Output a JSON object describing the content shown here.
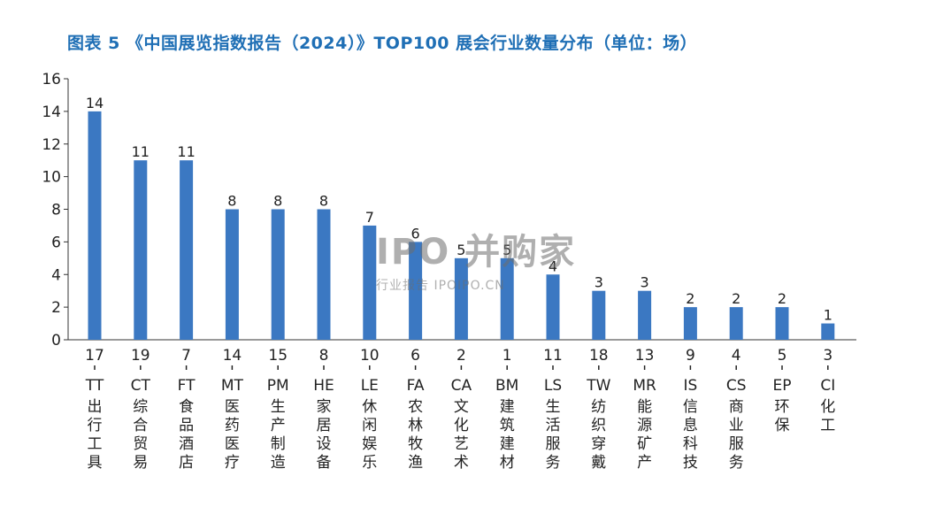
{
  "title": "图表 5 《中国展览指数报告（2024）》TOP100 展会行业数量分布（单位：场）",
  "watermark": {
    "main": "IPO 并购家",
    "sub": "行业报告 IPOIPO.CN"
  },
  "colors": {
    "bar": "#3b78c2",
    "title": "#1f6fb5",
    "axis": "#333333",
    "text": "#222222"
  },
  "chart_data": {
    "type": "bar",
    "title": "图表 5 《中国展览指数报告（2024）》TOP100 展会行业数量分布（单位：场）",
    "xlabel": "",
    "ylabel": "",
    "ylim": [
      0,
      16
    ],
    "yticks": [
      0,
      2,
      4,
      6,
      8,
      10,
      12,
      14,
      16
    ],
    "grid": false,
    "categories": [
      {
        "rank": "17",
        "code": "TT",
        "name": "出行工具"
      },
      {
        "rank": "19",
        "code": "CT",
        "name": "综合贸易"
      },
      {
        "rank": "7",
        "code": "FT",
        "name": "食品酒店"
      },
      {
        "rank": "14",
        "code": "MT",
        "name": "医药医疗"
      },
      {
        "rank": "15",
        "code": "PM",
        "name": "生产制造"
      },
      {
        "rank": "8",
        "code": "HE",
        "name": "家居设备"
      },
      {
        "rank": "10",
        "code": "LE",
        "name": "休闲娱乐"
      },
      {
        "rank": "6",
        "code": "FA",
        "name": "农林牧渔"
      },
      {
        "rank": "2",
        "code": "CA",
        "name": "文化艺术"
      },
      {
        "rank": "1",
        "code": "BM",
        "name": "建筑建材"
      },
      {
        "rank": "11",
        "code": "LS",
        "name": "生活服务"
      },
      {
        "rank": "18",
        "code": "TW",
        "name": "纺织穿戴"
      },
      {
        "rank": "13",
        "code": "MR",
        "name": "能源矿产"
      },
      {
        "rank": "9",
        "code": "IS",
        "name": "信息科技"
      },
      {
        "rank": "4",
        "code": "CS",
        "name": "商业服务"
      },
      {
        "rank": "5",
        "code": "EP",
        "name": "环保"
      },
      {
        "rank": "3",
        "code": "CI",
        "name": "化工"
      }
    ],
    "values": [
      14,
      11,
      11,
      8,
      8,
      8,
      7,
      6,
      5,
      5,
      4,
      3,
      3,
      2,
      2,
      2,
      1
    ]
  }
}
